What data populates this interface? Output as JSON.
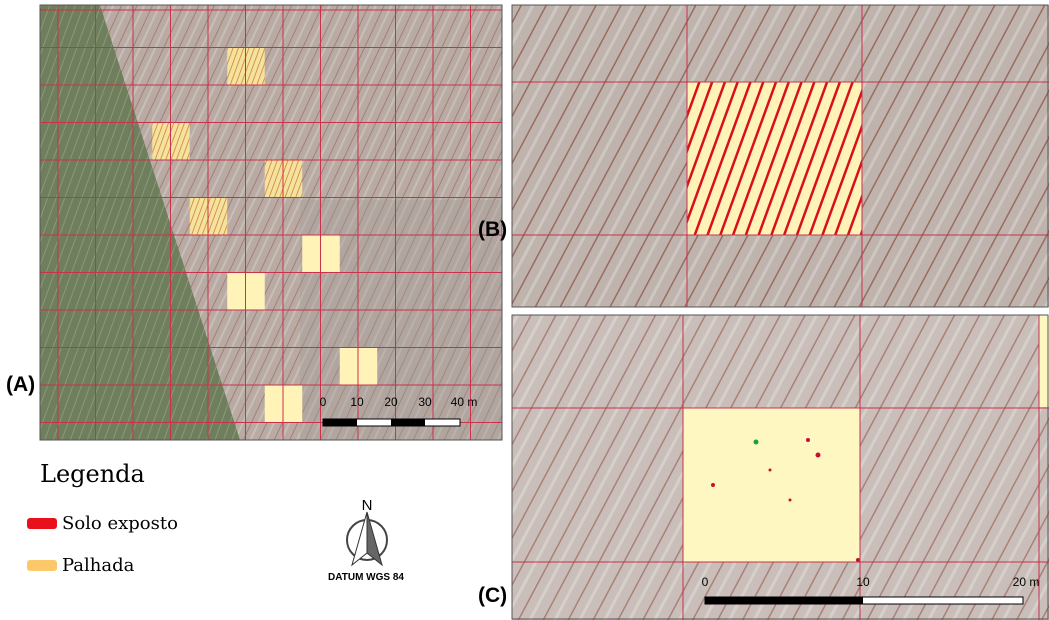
{
  "panels": [
    {
      "label": "(A)",
      "scale_labels": [
        "0",
        "10",
        "20",
        "30",
        "40 m"
      ]
    },
    {
      "label": "(B)"
    },
    {
      "label": "(C)",
      "scale_labels": [
        "0",
        "10",
        "20 m"
      ]
    }
  ],
  "legend": {
    "title": "Legenda",
    "items": [
      {
        "label": "Solo exposto",
        "color": "#e8111b"
      },
      {
        "label": "Palhada",
        "color": "#fbc96a"
      }
    ]
  },
  "north_arrow": {
    "letter": "N",
    "datum": "DATUM WGS 84"
  }
}
